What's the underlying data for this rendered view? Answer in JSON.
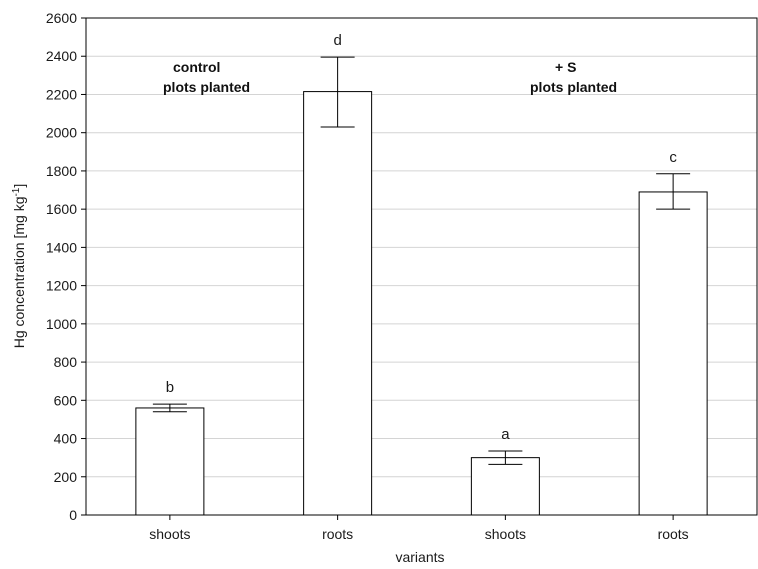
{
  "chart_data": {
    "type": "bar",
    "categories": [
      "shoots",
      "roots",
      "shoots",
      "roots"
    ],
    "values": [
      560,
      2215,
      300,
      1690
    ],
    "error_bars": [
      {
        "low": 540,
        "high": 580
      },
      {
        "low": 2030,
        "high": 2395
      },
      {
        "low": 265,
        "high": 335
      },
      {
        "low": 1600,
        "high": 1785
      }
    ],
    "significance_letters": [
      "b",
      "d",
      "a",
      "c"
    ],
    "xlabel": "variants",
    "ylabel_main": "Hg concentration [mg kg",
    "ylabel_sup": "-1",
    "ylabel_end": "]",
    "ylim": [
      0,
      2600
    ],
    "yticks": [
      "0",
      "200",
      "400",
      "600",
      "800",
      "1000",
      "1200",
      "1400",
      "1600",
      "1800",
      "2000",
      "2200",
      "2400",
      "2600"
    ],
    "grid": true,
    "annotations": [
      {
        "line1": "control",
        "line2": "plots planted"
      },
      {
        "line1": "+ S",
        "line2": "plots planted"
      }
    ],
    "colors": {
      "bar_fill": "#ffffff",
      "bar_stroke": "#000000",
      "grid": "#d4d4d4",
      "axis": "#000000"
    }
  }
}
